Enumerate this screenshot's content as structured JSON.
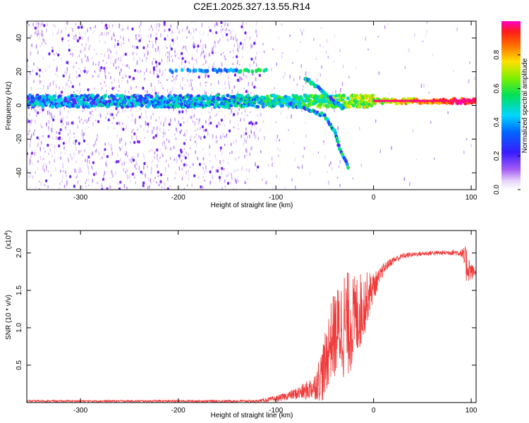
{
  "title": "C2E1.2025.327.13.55.R14",
  "chart_data": [
    {
      "type": "heatmap",
      "name": "spectrogram",
      "xlabel": "Height of straight line (km)",
      "ylabel": "Frequency (Hz)",
      "xlim": [
        -355,
        105
      ],
      "ylim": [
        -50,
        50
      ],
      "xticks": [
        -300,
        -200,
        -100,
        0,
        100
      ],
      "yticks": [
        -40,
        -20,
        0,
        20,
        40
      ],
      "xtick_labels": [
        "-300",
        "-200",
        "-100",
        "0",
        "100"
      ],
      "ytick_labels": [
        "-40",
        "-20",
        "0",
        "20",
        "40"
      ],
      "colorbar": {
        "label": "Normalized spectral amplitude",
        "range": [
          0,
          1
        ],
        "ticks": [
          0.0,
          0.2,
          0.4,
          0.6,
          0.8
        ],
        "tick_labels": [
          "0.0",
          "0.2",
          "0.4",
          "0.6",
          "0.8"
        ],
        "colors": [
          "#ffffff",
          "#cfa8f5",
          "#7a1ef5",
          "#1f3cff",
          "#00d8ff",
          "#00e060",
          "#7cf000",
          "#ffe000",
          "#ff7a00",
          "#ff1a1a",
          "#ff00c0"
        ]
      },
      "features": [
        {
          "name": "carrier-band",
          "x": [
            -355,
            105
          ],
          "freq_hz": 2.5,
          "amplitude_from": 0.35,
          "amplitude_to": 0.95
        },
        {
          "name": "upper-sideband",
          "x": [
            -210,
            -110
          ],
          "freq_hz": 20.5,
          "amplitude": 0.35
        },
        {
          "name": "descending-branch",
          "points": [
            [
              -100,
              4
            ],
            [
              -80,
              0
            ],
            [
              -65,
              -3
            ],
            [
              -50,
              -6
            ],
            [
              -40,
              -15
            ],
            [
              -35,
              -25
            ],
            [
              -25,
              -38
            ]
          ]
        },
        {
          "name": "ascending-branch",
          "points": [
            [
              -70,
              16
            ],
            [
              -60,
              12
            ],
            [
              -50,
              7
            ],
            [
              -40,
              2
            ],
            [
              -30,
              -2
            ]
          ]
        }
      ]
    },
    {
      "type": "line",
      "name": "snr",
      "xlabel": "Height of straight line (km)",
      "ylabel": "SNR (10 * v/v)",
      "y_scale_label": "(x10",
      "y_scale_exp": "4",
      "y_scale_close": ")",
      "xlim": [
        -355,
        105
      ],
      "ylim": [
        0,
        2.3
      ],
      "xticks": [
        -300,
        -200,
        -100,
        0,
        100
      ],
      "yticks": [
        0.5,
        1.0,
        1.5,
        2.0
      ],
      "xtick_labels": [
        "-300",
        "-200",
        "-100",
        "0",
        "100"
      ],
      "ytick_labels": [
        "0.5",
        "1.0",
        "1.5",
        "2.0"
      ],
      "color": "#ef3a3a",
      "envelope": {
        "x": [
          -355,
          -120,
          -100,
          -85,
          -70,
          -60,
          -50,
          -45,
          -40,
          -35,
          -30,
          -25,
          -20,
          -15,
          -10,
          -5,
          0,
          5,
          10,
          15,
          20,
          30,
          40,
          50,
          60,
          70,
          80,
          90,
          95,
          100,
          105
        ],
        "mean": [
          0.02,
          0.02,
          0.05,
          0.1,
          0.15,
          0.22,
          0.45,
          0.8,
          0.9,
          1.0,
          1.05,
          1.05,
          1.1,
          1.2,
          1.3,
          1.45,
          1.55,
          1.65,
          1.78,
          1.85,
          1.9,
          1.96,
          1.98,
          1.99,
          2.0,
          2.0,
          2.01,
          2.0,
          1.85,
          1.75,
          1.75
        ],
        "amp": [
          0.012,
          0.015,
          0.04,
          0.06,
          0.12,
          0.18,
          0.45,
          0.5,
          0.6,
          0.6,
          0.75,
          0.7,
          0.6,
          0.55,
          0.45,
          0.3,
          0.2,
          0.12,
          0.08,
          0.06,
          0.05,
          0.04,
          0.03,
          0.03,
          0.03,
          0.03,
          0.04,
          0.05,
          0.25,
          0.12,
          0.05
        ]
      }
    }
  ]
}
